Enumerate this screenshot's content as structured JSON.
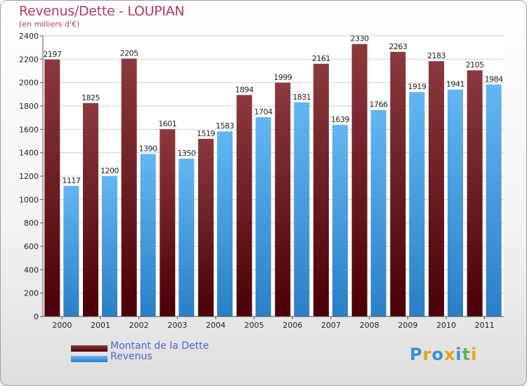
{
  "title": "Revenus/Dette - LOUPIAN",
  "subtitle": "(en milliers d'€)",
  "logo": {
    "text": "Proxiti",
    "colors": [
      "#3b8fd6",
      "#e8a417",
      "#3b8fd6",
      "#e8a417",
      "#3b8fd6",
      "#6ab04c",
      "#e8a417"
    ]
  },
  "colors": {
    "dette_top": "#8b3a3e",
    "dette_bottom": "#4a0006",
    "revenus_top": "#63b6f2",
    "revenus_bottom": "#2a7fc7",
    "axis_text": "#222222",
    "grid": "#d0d0d0",
    "legend_text": "#4f64d8"
  },
  "chart_data": {
    "type": "bar",
    "title": "Revenus/Dette - LOUPIAN",
    "subtitle": "(en milliers d'€)",
    "xlabel": "",
    "ylabel": "",
    "ylim": [
      0,
      2400
    ],
    "yticks": [
      0,
      200,
      400,
      600,
      800,
      1000,
      1200,
      1400,
      1600,
      1800,
      2000,
      2200,
      2400
    ],
    "grid": true,
    "legend_position": "bottom-left",
    "categories": [
      "2000",
      "2001",
      "2002",
      "2003",
      "2004",
      "2005",
      "2006",
      "2007",
      "2008",
      "2009",
      "2010",
      "2011"
    ],
    "series": [
      {
        "name": "Montant de la Dette",
        "values": [
          2197,
          1825,
          2205,
          1601,
          1519,
          1894,
          1999,
          2161,
          2330,
          2263,
          2183,
          2105
        ]
      },
      {
        "name": "Revenus",
        "values": [
          1117,
          1200,
          1390,
          1350,
          1583,
          1704,
          1831,
          1639,
          1766,
          1919,
          1941,
          1984
        ]
      }
    ]
  }
}
